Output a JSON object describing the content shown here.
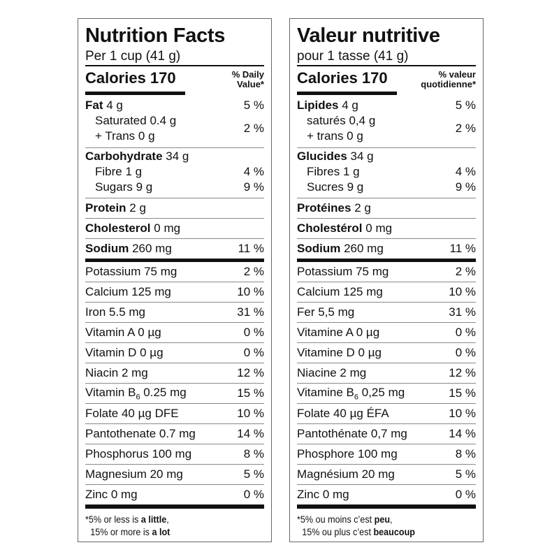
{
  "panels": [
    {
      "title": "Nutrition Facts",
      "serving": "Per 1 cup (41 g)",
      "calories": "Calories 170",
      "dv_header": [
        "% Daily",
        "Value*"
      ],
      "fat": {
        "label": "Fat",
        "amount": "4 g",
        "dv": "5 %"
      },
      "saturated": "Saturated 0.4 g",
      "trans": "+ Trans 0 g",
      "sat_trans_dv": "2 %",
      "carb": {
        "label": "Carbohydrate",
        "amount": "34 g"
      },
      "fibre": {
        "label": "Fibre 1 g",
        "dv": "4 %"
      },
      "sugars": {
        "label": "Sugars 9 g",
        "dv": "9 %"
      },
      "protein": {
        "label": "Protein",
        "amount": "2 g"
      },
      "cholesterol": {
        "label": "Cholesterol",
        "amount": "0 mg"
      },
      "sodium": {
        "label": "Sodium",
        "amount": "260 mg",
        "dv": "11 %"
      },
      "micros": [
        {
          "name": "Potassium 75 mg",
          "dv": "2 %"
        },
        {
          "name": "Calcium 125 mg",
          "dv": "10 %"
        },
        {
          "name": "Iron 5.5 mg",
          "dv": "31 %"
        },
        {
          "name": "Vitamin A 0 µg",
          "dv": "0 %"
        },
        {
          "name": "Vitamin D 0 µg",
          "dv": "0 %"
        },
        {
          "name": "Niacin 2 mg",
          "dv": "12 %"
        },
        {
          "name": "Vitamin B",
          "sub": "6",
          "rest": " 0.25 mg",
          "dv": "15 %"
        },
        {
          "name": "Folate 40 µg DFE",
          "dv": "10 %"
        },
        {
          "name": "Pantothenate 0.7 mg",
          "dv": "14 %"
        },
        {
          "name": "Phosphorus 100 mg",
          "dv": "8 %"
        },
        {
          "name": "Magnesium 20 mg",
          "dv": "5 %"
        },
        {
          "name": "Zinc 0 mg",
          "dv": "0 %"
        }
      ],
      "footnote": {
        "l1a": "*5% or less is ",
        "l1b": "a little",
        "l1c": ",",
        "l2a": " 15% or more is ",
        "l2b": "a lot"
      }
    },
    {
      "title": "Valeur nutritive",
      "serving": "pour 1 tasse (41 g)",
      "calories": "Calories 170",
      "dv_header": [
        "% valeur",
        "quotidienne*"
      ],
      "fat": {
        "label": "Lipides",
        "amount": "4 g",
        "dv": "5 %"
      },
      "saturated": "saturés 0,4 g",
      "trans": "+ trans 0 g",
      "sat_trans_dv": "2 %",
      "carb": {
        "label": "Glucides",
        "amount": "34 g"
      },
      "fibre": {
        "label": "Fibres 1 g",
        "dv": "4 %"
      },
      "sugars": {
        "label": "Sucres 9 g",
        "dv": "9 %"
      },
      "protein": {
        "label": "Protéines",
        "amount": "2 g"
      },
      "cholesterol": {
        "label": "Cholestérol",
        "amount": "0 mg"
      },
      "sodium": {
        "label": "Sodium",
        "amount": "260 mg",
        "dv": "11 %"
      },
      "micros": [
        {
          "name": "Potassium 75 mg",
          "dv": "2 %"
        },
        {
          "name": "Calcium 125 mg",
          "dv": "10 %"
        },
        {
          "name": "Fer 5,5 mg",
          "dv": "31 %"
        },
        {
          "name": "Vitamine A 0 µg",
          "dv": "0 %"
        },
        {
          "name": "Vitamine D 0 µg",
          "dv": "0 %"
        },
        {
          "name": "Niacine 2 mg",
          "dv": "12 %"
        },
        {
          "name": "Vitamine B",
          "sub": "6",
          "rest": " 0,25 mg",
          "dv": "15 %"
        },
        {
          "name": "Folate 40 µg ÉFA",
          "dv": "10 %"
        },
        {
          "name": "Pantothénate 0,7 mg",
          "dv": "14 %"
        },
        {
          "name": "Phosphore 100 mg",
          "dv": "8 %"
        },
        {
          "name": "Magnésium 20 mg",
          "dv": "5 %"
        },
        {
          "name": "Zinc 0 mg",
          "dv": "0 %"
        }
      ],
      "footnote": {
        "l1a": "*5% ou moins c’est ",
        "l1b": "peu",
        "l1c": ",",
        "l2a": " 15% ou plus c’est ",
        "l2b": "beaucoup"
      }
    }
  ]
}
